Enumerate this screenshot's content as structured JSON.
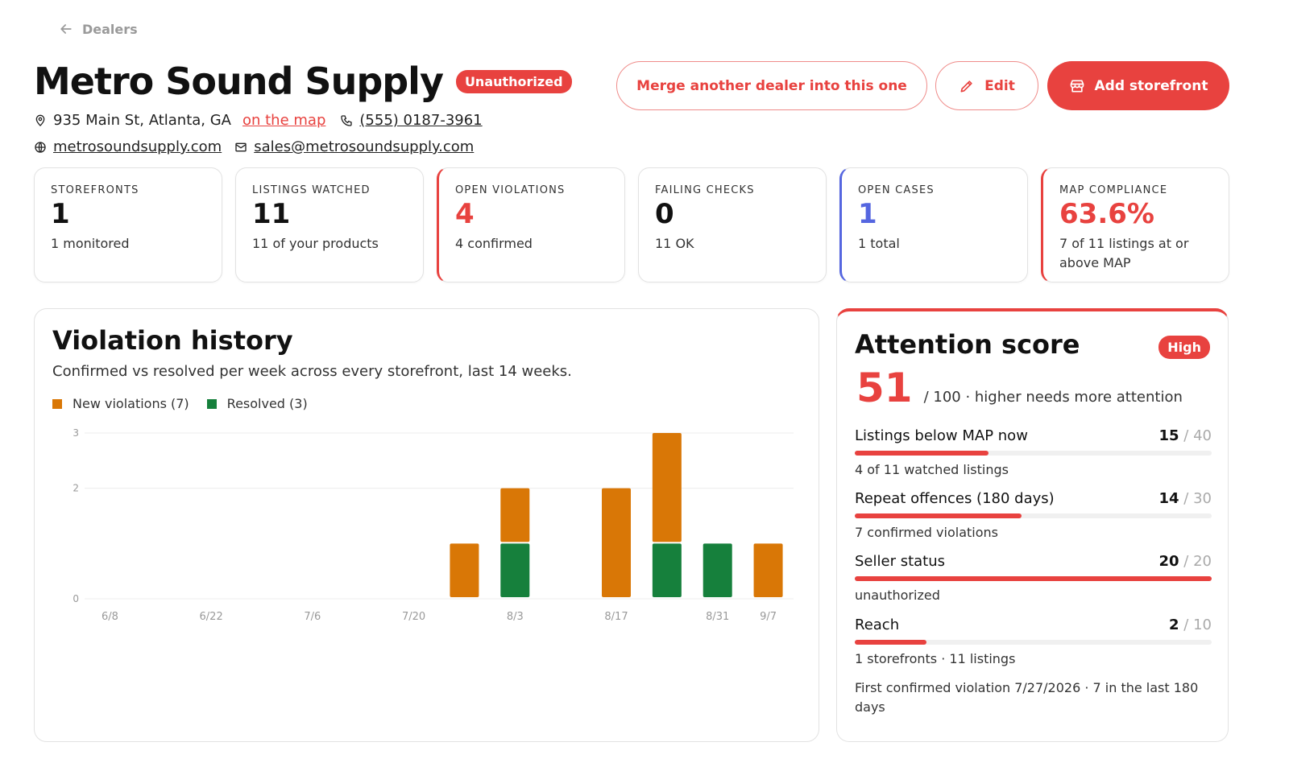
{
  "nav": {
    "back_label": "Dealers"
  },
  "dealer": {
    "name": "Metro Sound Supply",
    "status_badge": "Unauthorized",
    "address": "935 Main St, Atlanta, GA",
    "map_link": "on the map",
    "phone": "(555) 0187-3961",
    "website": "metrosoundsupply.com",
    "email": "sales@metrosoundsupply.com"
  },
  "actions": {
    "merge_label": "Merge another dealer into this one",
    "edit_label": "Edit",
    "add_storefront_label": "Add storefront"
  },
  "stats": [
    {
      "label": "STOREFRONTS",
      "value": "1",
      "sub": "1 monitored",
      "color": "#111111"
    },
    {
      "label": "LISTINGS WATCHED",
      "value": "11",
      "sub": "11 of your products",
      "color": "#111111"
    },
    {
      "label": "OPEN VIOLATIONS",
      "value": "4",
      "sub": "4 confirmed",
      "color": "#e8423f"
    },
    {
      "label": "FAILING CHECKS",
      "value": "0",
      "sub": "11 OK",
      "color": "#111111"
    },
    {
      "label": "OPEN CASES",
      "value": "1",
      "sub": "1 total",
      "color": "#5566e0"
    },
    {
      "label": "MAP COMPLIANCE",
      "value": "63.6%",
      "sub": "7 of 11 listings at or above MAP",
      "color": "#e8423f"
    }
  ],
  "violation_history": {
    "title": "Violation history",
    "subtitle": "Confirmed vs resolved per week across every storefront, last 14 weeks.",
    "legend_new": "New violations (7)",
    "legend_resolved": "Resolved (3)"
  },
  "chart_data": {
    "type": "bar",
    "stacked": true,
    "categories": [
      "6/8",
      "6/15",
      "6/22",
      "6/29",
      "7/6",
      "7/13",
      "7/20",
      "7/27",
      "8/3",
      "8/10",
      "8/17",
      "8/24",
      "8/31",
      "9/7"
    ],
    "tick_labels": [
      "6/8",
      "6/22",
      "7/6",
      "7/20",
      "8/3",
      "8/17",
      "8/31",
      "9/7"
    ],
    "series": [
      {
        "name": "Resolved",
        "color": "#16803c",
        "values": [
          0,
          0,
          0,
          0,
          0,
          0,
          0,
          0,
          1,
          0,
          0,
          1,
          1,
          0
        ]
      },
      {
        "name": "New violations",
        "color": "#d97706",
        "values": [
          0,
          0,
          0,
          0,
          0,
          0,
          0,
          1,
          1,
          0,
          2,
          2,
          0,
          1
        ]
      }
    ],
    "ylim": [
      0,
      3
    ],
    "yticks": [
      0,
      2,
      3
    ],
    "grid": true
  },
  "attention": {
    "title": "Attention score",
    "level_badge": "High",
    "score": "51",
    "score_text": "/ 100 · higher needs more attention",
    "factors": [
      {
        "label": "Listings below MAP now",
        "value": 15,
        "max": 40,
        "sub": "4 of 11 watched listings"
      },
      {
        "label": "Repeat offences (180 days)",
        "value": 14,
        "max": 30,
        "sub": "7 confirmed violations"
      },
      {
        "label": "Seller status",
        "value": 20,
        "max": 20,
        "sub": "unauthorized"
      },
      {
        "label": "Reach",
        "value": 2,
        "max": 10,
        "sub": "1 storefronts · 11 listings"
      }
    ],
    "first_violation": "First confirmed violation 7/27/2026 · 7 in the last 180 days"
  },
  "colors": {
    "accent": "#e8423f",
    "new_violations": "#d97706",
    "resolved": "#16803c",
    "cases": "#5566e0"
  }
}
